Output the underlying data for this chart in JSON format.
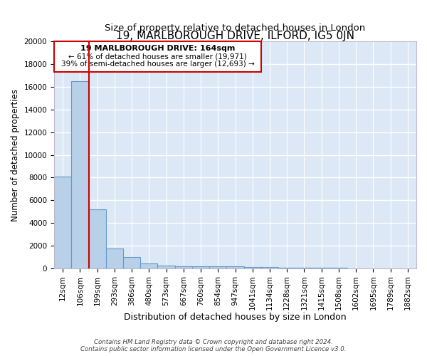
{
  "title": "19, MARLBOROUGH DRIVE, ILFORD, IG5 0JN",
  "subtitle": "Size of property relative to detached houses in London",
  "xlabel": "Distribution of detached houses by size in London",
  "ylabel": "Number of detached properties",
  "bar_labels": [
    "12sqm",
    "106sqm",
    "199sqm",
    "293sqm",
    "386sqm",
    "480sqm",
    "573sqm",
    "667sqm",
    "760sqm",
    "854sqm",
    "947sqm",
    "1041sqm",
    "1134sqm",
    "1228sqm",
    "1321sqm",
    "1415sqm",
    "1508sqm",
    "1602sqm",
    "1695sqm",
    "1789sqm",
    "1882sqm"
  ],
  "bar_heights": [
    8100,
    16500,
    5200,
    1750,
    1000,
    400,
    230,
    200,
    185,
    170,
    150,
    130,
    110,
    80,
    60,
    40,
    30,
    20,
    15,
    10,
    8
  ],
  "bar_color": "#b8d0e8",
  "bar_edge_color": "#6699cc",
  "bg_color": "#dce8f5",
  "grid_color": "#ffffff",
  "fig_bg_color": "#ffffff",
  "ylim": [
    0,
    20000
  ],
  "yticks": [
    0,
    2000,
    4000,
    6000,
    8000,
    10000,
    12000,
    14000,
    16000,
    18000,
    20000
  ],
  "property_line_x": 1.5,
  "property_line_color": "#cc0000",
  "annotation_title": "19 MARLBOROUGH DRIVE: 164sqm",
  "annotation_line1": "← 61% of detached houses are smaller (19,971)",
  "annotation_line2": "39% of semi-detached houses are larger (12,693) →",
  "annotation_box_color": "#cc0000",
  "footer_line1": "Contains HM Land Registry data © Crown copyright and database right 2024.",
  "footer_line2": "Contains public sector information licensed under the Open Government Licence v3.0.",
  "title_fontsize": 11,
  "subtitle_fontsize": 9.5,
  "tick_fontsize": 7.5,
  "ylabel_fontsize": 8.5,
  "xlabel_fontsize": 9
}
